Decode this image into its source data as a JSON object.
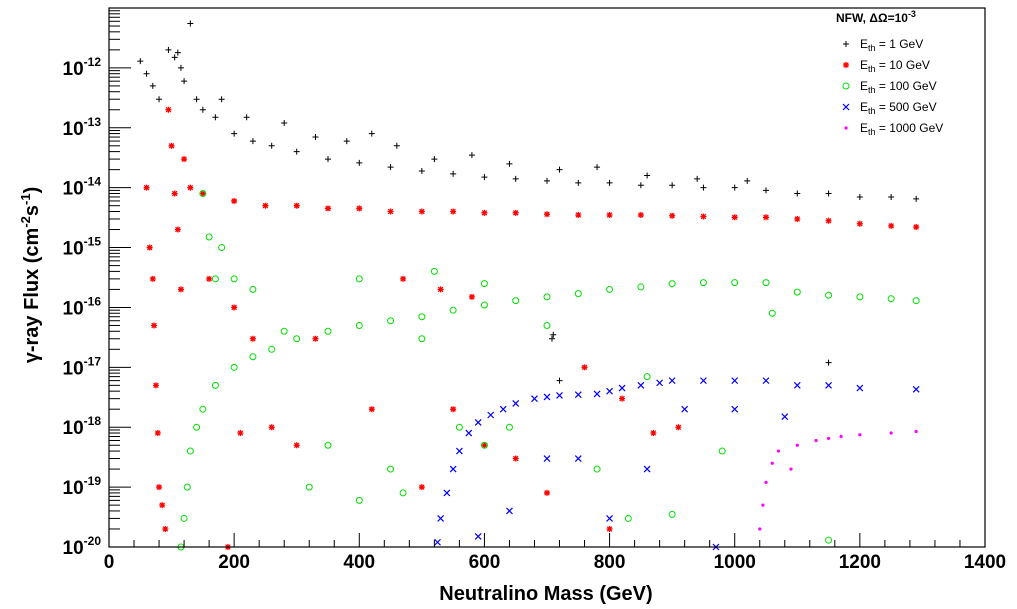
{
  "chart_data": {
    "type": "scatter",
    "xlabel": "Neutralino Mass (GeV)",
    "ylabel": "γ-ray Flux (cm⁻²s⁻¹)",
    "ylabel_parts": {
      "pre": "γ-ray Flux (cm",
      "exp1": "-2",
      "mid": "s",
      "exp2": "-1",
      "post": ")"
    },
    "xlim": [
      0,
      1400
    ],
    "ylim": [
      1e-20,
      1e-11
    ],
    "yscale": "log",
    "x_ticks": [
      "0",
      "200",
      "400",
      "600",
      "800",
      "1000",
      "1200",
      "1400"
    ],
    "y_ticks": [
      {
        "base": "10",
        "exp": "-20"
      },
      {
        "base": "10",
        "exp": "-19"
      },
      {
        "base": "10",
        "exp": "-18"
      },
      {
        "base": "10",
        "exp": "-17"
      },
      {
        "base": "10",
        "exp": "-16"
      },
      {
        "base": "10",
        "exp": "-15"
      },
      {
        "base": "10",
        "exp": "-14"
      },
      {
        "base": "10",
        "exp": "-13"
      },
      {
        "base": "10",
        "exp": "-12"
      }
    ],
    "legend_title": {
      "pre": "NFW, ΔΩ=10",
      "exp": "-3"
    },
    "legend_placement": "top-right",
    "series": [
      {
        "name": "E_th = 1 GeV",
        "label_parts": {
          "pre": "E",
          "sub": "th",
          "post": " = 1 GeV"
        },
        "color": "#000000",
        "marker": "plus",
        "points": [
          [
            50,
            1.3e-12
          ],
          [
            60,
            8e-13
          ],
          [
            70,
            5e-13
          ],
          [
            80,
            3e-13
          ],
          [
            95,
            2e-12
          ],
          [
            105,
            1.5e-12
          ],
          [
            110,
            1.8e-12
          ],
          [
            115,
            1e-12
          ],
          [
            120,
            6e-13
          ],
          [
            130,
            5.5e-12
          ],
          [
            140,
            3e-13
          ],
          [
            150,
            2e-13
          ],
          [
            170,
            1.5e-13
          ],
          [
            200,
            8e-14
          ],
          [
            230,
            6e-14
          ],
          [
            260,
            5e-14
          ],
          [
            300,
            4e-14
          ],
          [
            350,
            3e-14
          ],
          [
            400,
            2.6e-14
          ],
          [
            450,
            2.2e-14
          ],
          [
            500,
            1.9e-14
          ],
          [
            550,
            1.7e-14
          ],
          [
            600,
            1.5e-14
          ],
          [
            650,
            1.4e-14
          ],
          [
            700,
            1.3e-14
          ],
          [
            750,
            1.2e-14
          ],
          [
            800,
            1.2e-14
          ],
          [
            850,
            1.1e-14
          ],
          [
            900,
            1.1e-14
          ],
          [
            950,
            1e-14
          ],
          [
            1000,
            1e-14
          ],
          [
            1050,
            9e-15
          ],
          [
            1100,
            8e-15
          ],
          [
            1150,
            8e-15
          ],
          [
            1200,
            7e-15
          ],
          [
            1250,
            7e-15
          ],
          [
            1290,
            6.5e-15
          ],
          [
            180,
            3e-13
          ],
          [
            220,
            1.5e-13
          ],
          [
            280,
            1.2e-13
          ],
          [
            330,
            7e-14
          ],
          [
            380,
            6e-14
          ],
          [
            420,
            8e-14
          ],
          [
            460,
            5e-14
          ],
          [
            520,
            3e-14
          ],
          [
            580,
            3.5e-14
          ],
          [
            640,
            2.5e-14
          ],
          [
            720,
            2e-14
          ],
          [
            780,
            2.2e-14
          ],
          [
            860,
            1.6e-14
          ],
          [
            940,
            1.4e-14
          ],
          [
            1020,
            1.3e-14
          ],
          [
            708,
            3e-17
          ],
          [
            1150,
            1.2e-17
          ],
          [
            710,
            3.5e-17
          ],
          [
            720,
            6e-18
          ]
        ]
      },
      {
        "name": "E_th = 10 GeV",
        "label_parts": {
          "pre": "E",
          "sub": "th",
          "post": " = 10 GeV"
        },
        "color": "#ff0000",
        "marker": "star",
        "points": [
          [
            60,
            1e-14
          ],
          [
            65,
            1e-15
          ],
          [
            70,
            3e-16
          ],
          [
            72,
            5e-17
          ],
          [
            75,
            5e-18
          ],
          [
            78,
            8e-19
          ],
          [
            80,
            1e-19
          ],
          [
            85,
            5e-20
          ],
          [
            90,
            2e-20
          ],
          [
            95,
            2e-13
          ],
          [
            100,
            5e-14
          ],
          [
            105,
            8e-15
          ],
          [
            110,
            2e-15
          ],
          [
            115,
            2e-16
          ],
          [
            120,
            3e-14
          ],
          [
            130,
            1e-14
          ],
          [
            150,
            8e-15
          ],
          [
            200,
            6e-15
          ],
          [
            250,
            5e-15
          ],
          [
            300,
            5e-15
          ],
          [
            350,
            4.5e-15
          ],
          [
            400,
            4.5e-15
          ],
          [
            450,
            4e-15
          ],
          [
            500,
            4e-15
          ],
          [
            550,
            4e-15
          ],
          [
            600,
            3.8e-15
          ],
          [
            650,
            3.8e-15
          ],
          [
            700,
            3.6e-15
          ],
          [
            750,
            3.5e-15
          ],
          [
            800,
            3.5e-15
          ],
          [
            850,
            3.5e-15
          ],
          [
            900,
            3.4e-15
          ],
          [
            950,
            3.3e-15
          ],
          [
            1000,
            3.2e-15
          ],
          [
            1050,
            3.2e-15
          ],
          [
            1100,
            3e-15
          ],
          [
            1150,
            2.8e-15
          ],
          [
            1200,
            2.5e-15
          ],
          [
            1250,
            2.3e-15
          ],
          [
            1290,
            2.2e-15
          ],
          [
            160,
            3e-16
          ],
          [
            200,
            1e-16
          ],
          [
            230,
            3e-17
          ],
          [
            260,
            1e-18
          ],
          [
            300,
            5e-19
          ],
          [
            330,
            3e-17
          ],
          [
            420,
            2e-18
          ],
          [
            500,
            1e-19
          ],
          [
            600,
            5e-19
          ],
          [
            700,
            8e-20
          ],
          [
            800,
            2e-20
          ],
          [
            550,
            2e-18
          ],
          [
            650,
            3e-19
          ],
          [
            760,
            1e-17
          ],
          [
            820,
            3e-18
          ],
          [
            870,
            8e-19
          ],
          [
            910,
            1e-18
          ],
          [
            470,
            3e-16
          ],
          [
            530,
            2e-16
          ],
          [
            580,
            1.5e-16
          ],
          [
            210,
            8e-19
          ],
          [
            190,
            1e-20
          ]
        ]
      },
      {
        "name": "E_th = 100 GeV",
        "label_parts": {
          "pre": "E",
          "sub": "th",
          "post": " = 100 GeV"
        },
        "color": "#00e000",
        "marker": "circle",
        "points": [
          [
            115,
            1e-20
          ],
          [
            120,
            3e-20
          ],
          [
            125,
            1e-19
          ],
          [
            130,
            4e-19
          ],
          [
            140,
            1e-18
          ],
          [
            150,
            2e-18
          ],
          [
            170,
            5e-18
          ],
          [
            200,
            1e-17
          ],
          [
            230,
            1.5e-17
          ],
          [
            260,
            2e-17
          ],
          [
            300,
            3e-17
          ],
          [
            350,
            4e-17
          ],
          [
            400,
            5e-17
          ],
          [
            450,
            6e-17
          ],
          [
            500,
            7e-17
          ],
          [
            550,
            9e-17
          ],
          [
            600,
            1.1e-16
          ],
          [
            650,
            1.3e-16
          ],
          [
            700,
            1.5e-16
          ],
          [
            750,
            1.7e-16
          ],
          [
            800,
            2e-16
          ],
          [
            850,
            2.2e-16
          ],
          [
            900,
            2.5e-16
          ],
          [
            950,
            2.6e-16
          ],
          [
            1000,
            2.6e-16
          ],
          [
            1050,
            2.6e-16
          ],
          [
            1100,
            1.8e-16
          ],
          [
            1150,
            1.6e-16
          ],
          [
            1200,
            1.5e-16
          ],
          [
            1250,
            1.4e-16
          ],
          [
            1290,
            1.3e-16
          ],
          [
            150,
            8e-15
          ],
          [
            160,
            1.5e-15
          ],
          [
            170,
            3e-16
          ],
          [
            180,
            1e-15
          ],
          [
            200,
            3e-16
          ],
          [
            230,
            2e-16
          ],
          [
            280,
            4e-17
          ],
          [
            320,
            1e-19
          ],
          [
            350,
            5e-19
          ],
          [
            400,
            6e-20
          ],
          [
            450,
            2e-19
          ],
          [
            470,
            8e-20
          ],
          [
            500,
            3e-17
          ],
          [
            560,
            1e-18
          ],
          [
            600,
            5e-19
          ],
          [
            640,
            1e-18
          ],
          [
            700,
            5e-17
          ],
          [
            780,
            2e-19
          ],
          [
            830,
            3e-20
          ],
          [
            860,
            7e-18
          ],
          [
            900,
            3.5e-20
          ],
          [
            980,
            4e-19
          ],
          [
            1150,
            1.3e-20
          ],
          [
            1060,
            8e-17
          ],
          [
            400,
            3e-16
          ],
          [
            520,
            4e-16
          ],
          [
            600,
            2.5e-16
          ]
        ]
      },
      {
        "name": "E_th = 500 GeV",
        "label_parts": {
          "pre": "E",
          "sub": "th",
          "post": " = 500 GeV"
        },
        "color": "#0000ff",
        "marker": "x",
        "points": [
          [
            525,
            1.2e-20
          ],
          [
            530,
            3e-20
          ],
          [
            540,
            8e-20
          ],
          [
            550,
            2e-19
          ],
          [
            560,
            4e-19
          ],
          [
            575,
            8e-19
          ],
          [
            590,
            1.2e-18
          ],
          [
            610,
            1.6e-18
          ],
          [
            630,
            2e-18
          ],
          [
            650,
            2.5e-18
          ],
          [
            680,
            3e-18
          ],
          [
            700,
            3.2e-18
          ],
          [
            720,
            3.4e-18
          ],
          [
            750,
            3.5e-18
          ],
          [
            780,
            3.6e-18
          ],
          [
            800,
            4e-18
          ],
          [
            820,
            4.5e-18
          ],
          [
            850,
            5e-18
          ],
          [
            880,
            5.5e-18
          ],
          [
            900,
            6e-18
          ],
          [
            950,
            6e-18
          ],
          [
            1000,
            6e-18
          ],
          [
            1050,
            6e-18
          ],
          [
            1100,
            5e-18
          ],
          [
            1150,
            5e-18
          ],
          [
            1200,
            4.5e-18
          ],
          [
            1290,
            4.3e-18
          ],
          [
            590,
            1.5e-20
          ],
          [
            640,
            4e-20
          ],
          [
            700,
            3e-19
          ],
          [
            750,
            3e-19
          ],
          [
            800,
            3e-20
          ],
          [
            860,
            2e-19
          ],
          [
            920,
            2e-18
          ],
          [
            970,
            1e-20
          ],
          [
            1000,
            2e-18
          ],
          [
            1080,
            1.5e-18
          ]
        ]
      },
      {
        "name": "E_th = 1000 GeV",
        "label_parts": {
          "pre": "E",
          "sub": "th",
          "post": " = 1000 GeV"
        },
        "color": "#ff00ff",
        "marker": "dot",
        "points": [
          [
            1040,
            2e-20
          ],
          [
            1045,
            5e-20
          ],
          [
            1050,
            1.2e-19
          ],
          [
            1060,
            2.5e-19
          ],
          [
            1070,
            4e-19
          ],
          [
            1090,
            2e-19
          ],
          [
            1100,
            5e-19
          ],
          [
            1130,
            6e-19
          ],
          [
            1150,
            6.5e-19
          ],
          [
            1170,
            7e-19
          ],
          [
            1200,
            7.5e-19
          ],
          [
            1250,
            8e-19
          ],
          [
            1290,
            8.5e-19
          ]
        ]
      }
    ]
  }
}
